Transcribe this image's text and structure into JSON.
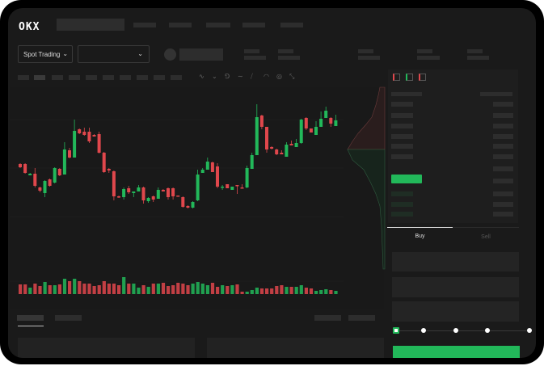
{
  "brand": {
    "logo": "OKX"
  },
  "market": {
    "mode_label": "Spot Trading"
  },
  "trade": {
    "buy_label": "Buy",
    "sell_label": "Sell",
    "active_tab": "Buy",
    "leverage_slider_position": 0
  },
  "colors": {
    "up": "#22b85a",
    "down": "#e0474c",
    "background": "#1a1a1a"
  },
  "toolbar_icons": [
    "line-tool-icon",
    "ray-tool-icon",
    "fib-tool-icon",
    "curve-tool-icon",
    "ruler-icon",
    "camera-icon",
    "settings-icon",
    "fullscreen-icon"
  ],
  "orderbook_icons": [
    "book-both-icon",
    "book-bids-icon",
    "book-asks-icon"
  ],
  "chart_data": {
    "type": "candlestick",
    "candles": [
      [
        97,
        98,
        92,
        93
      ],
      [
        97,
        98,
        85,
        86
      ],
      [
        83,
        86,
        83,
        85
      ],
      [
        85,
        92,
        68,
        70
      ],
      [
        68,
        69,
        62,
        64
      ],
      [
        61,
        77,
        56,
        76
      ],
      [
        78,
        79,
        69,
        70
      ],
      [
        74,
        93,
        73,
        92
      ],
      [
        91,
        92,
        82,
        83
      ],
      [
        84,
        124,
        84,
        115
      ],
      [
        114,
        117,
        104,
        105
      ],
      [
        105,
        152,
        105,
        138
      ],
      [
        140,
        141,
        134,
        135
      ],
      [
        137,
        142,
        132,
        133
      ],
      [
        137,
        142,
        123,
        125
      ],
      [
        133,
        134,
        131,
        131
      ],
      [
        134,
        137,
        110,
        111
      ],
      [
        111,
        112,
        86,
        87
      ],
      [
        91,
        92,
        86,
        89
      ],
      [
        88,
        89,
        52,
        57
      ],
      [
        57,
        58,
        55,
        56
      ],
      [
        56,
        68,
        53,
        66
      ],
      [
        67,
        70,
        60,
        62
      ],
      [
        61,
        63,
        56,
        63
      ],
      [
        63,
        71,
        63,
        68
      ],
      [
        68,
        69,
        48,
        52
      ],
      [
        51,
        56,
        49,
        55
      ],
      [
        57,
        58,
        50,
        53
      ],
      [
        54,
        68,
        54,
        65
      ],
      [
        65,
        66,
        63,
        63
      ],
      [
        67,
        68,
        53,
        56
      ],
      [
        67,
        68,
        53,
        57
      ],
      [
        58,
        58,
        57,
        57
      ],
      [
        56,
        57,
        43,
        44
      ],
      [
        45,
        46,
        42,
        43
      ],
      [
        43,
        51,
        42,
        50
      ],
      [
        52,
        90,
        51,
        84
      ],
      [
        86,
        92,
        86,
        90
      ],
      [
        90,
        105,
        90,
        100
      ],
      [
        99,
        100,
        87,
        87
      ],
      [
        94,
        98,
        67,
        69
      ],
      [
        68,
        71,
        65,
        69
      ],
      [
        72,
        72,
        67,
        67
      ],
      [
        65,
        69,
        65,
        69
      ],
      [
        71,
        71,
        60,
        70
      ],
      [
        68,
        72,
        67,
        67
      ],
      [
        68,
        95,
        67,
        92
      ],
      [
        91,
        111,
        91,
        108
      ],
      [
        108,
        171,
        108,
        155
      ],
      [
        157,
        158,
        140,
        143
      ],
      [
        143,
        143,
        111,
        115
      ],
      [
        118,
        119,
        115,
        116
      ],
      [
        115,
        116,
        108,
        109
      ],
      [
        111,
        114,
        109,
        109
      ],
      [
        106,
        124,
        106,
        121
      ],
      [
        122,
        126,
        120,
        120
      ],
      [
        118,
        128,
        118,
        123
      ],
      [
        123,
        153,
        122,
        152
      ],
      [
        154,
        155,
        139,
        141
      ],
      [
        141,
        141,
        136,
        136
      ],
      [
        133,
        150,
        133,
        143
      ],
      [
        143,
        162,
        143,
        153
      ],
      [
        154,
        168,
        154,
        163
      ],
      [
        154,
        155,
        143,
        147
      ],
      [
        144,
        158,
        144,
        151
      ]
    ],
    "volume": [
      12,
      12,
      8,
      13,
      10,
      15,
      11,
      11,
      12,
      19,
      16,
      19,
      16,
      13,
      13,
      10,
      11,
      16,
      13,
      13,
      11,
      21,
      13,
      13,
      8,
      11,
      9,
      13,
      13,
      14,
      10,
      11,
      14,
      13,
      11,
      13,
      15,
      13,
      11,
      14,
      9,
      11,
      10,
      11,
      12,
      3,
      3,
      5,
      8,
      7,
      7,
      7,
      10,
      11,
      9,
      9,
      9,
      11,
      8,
      7,
      4,
      5,
      6,
      5,
      4
    ],
    "grid": true
  }
}
